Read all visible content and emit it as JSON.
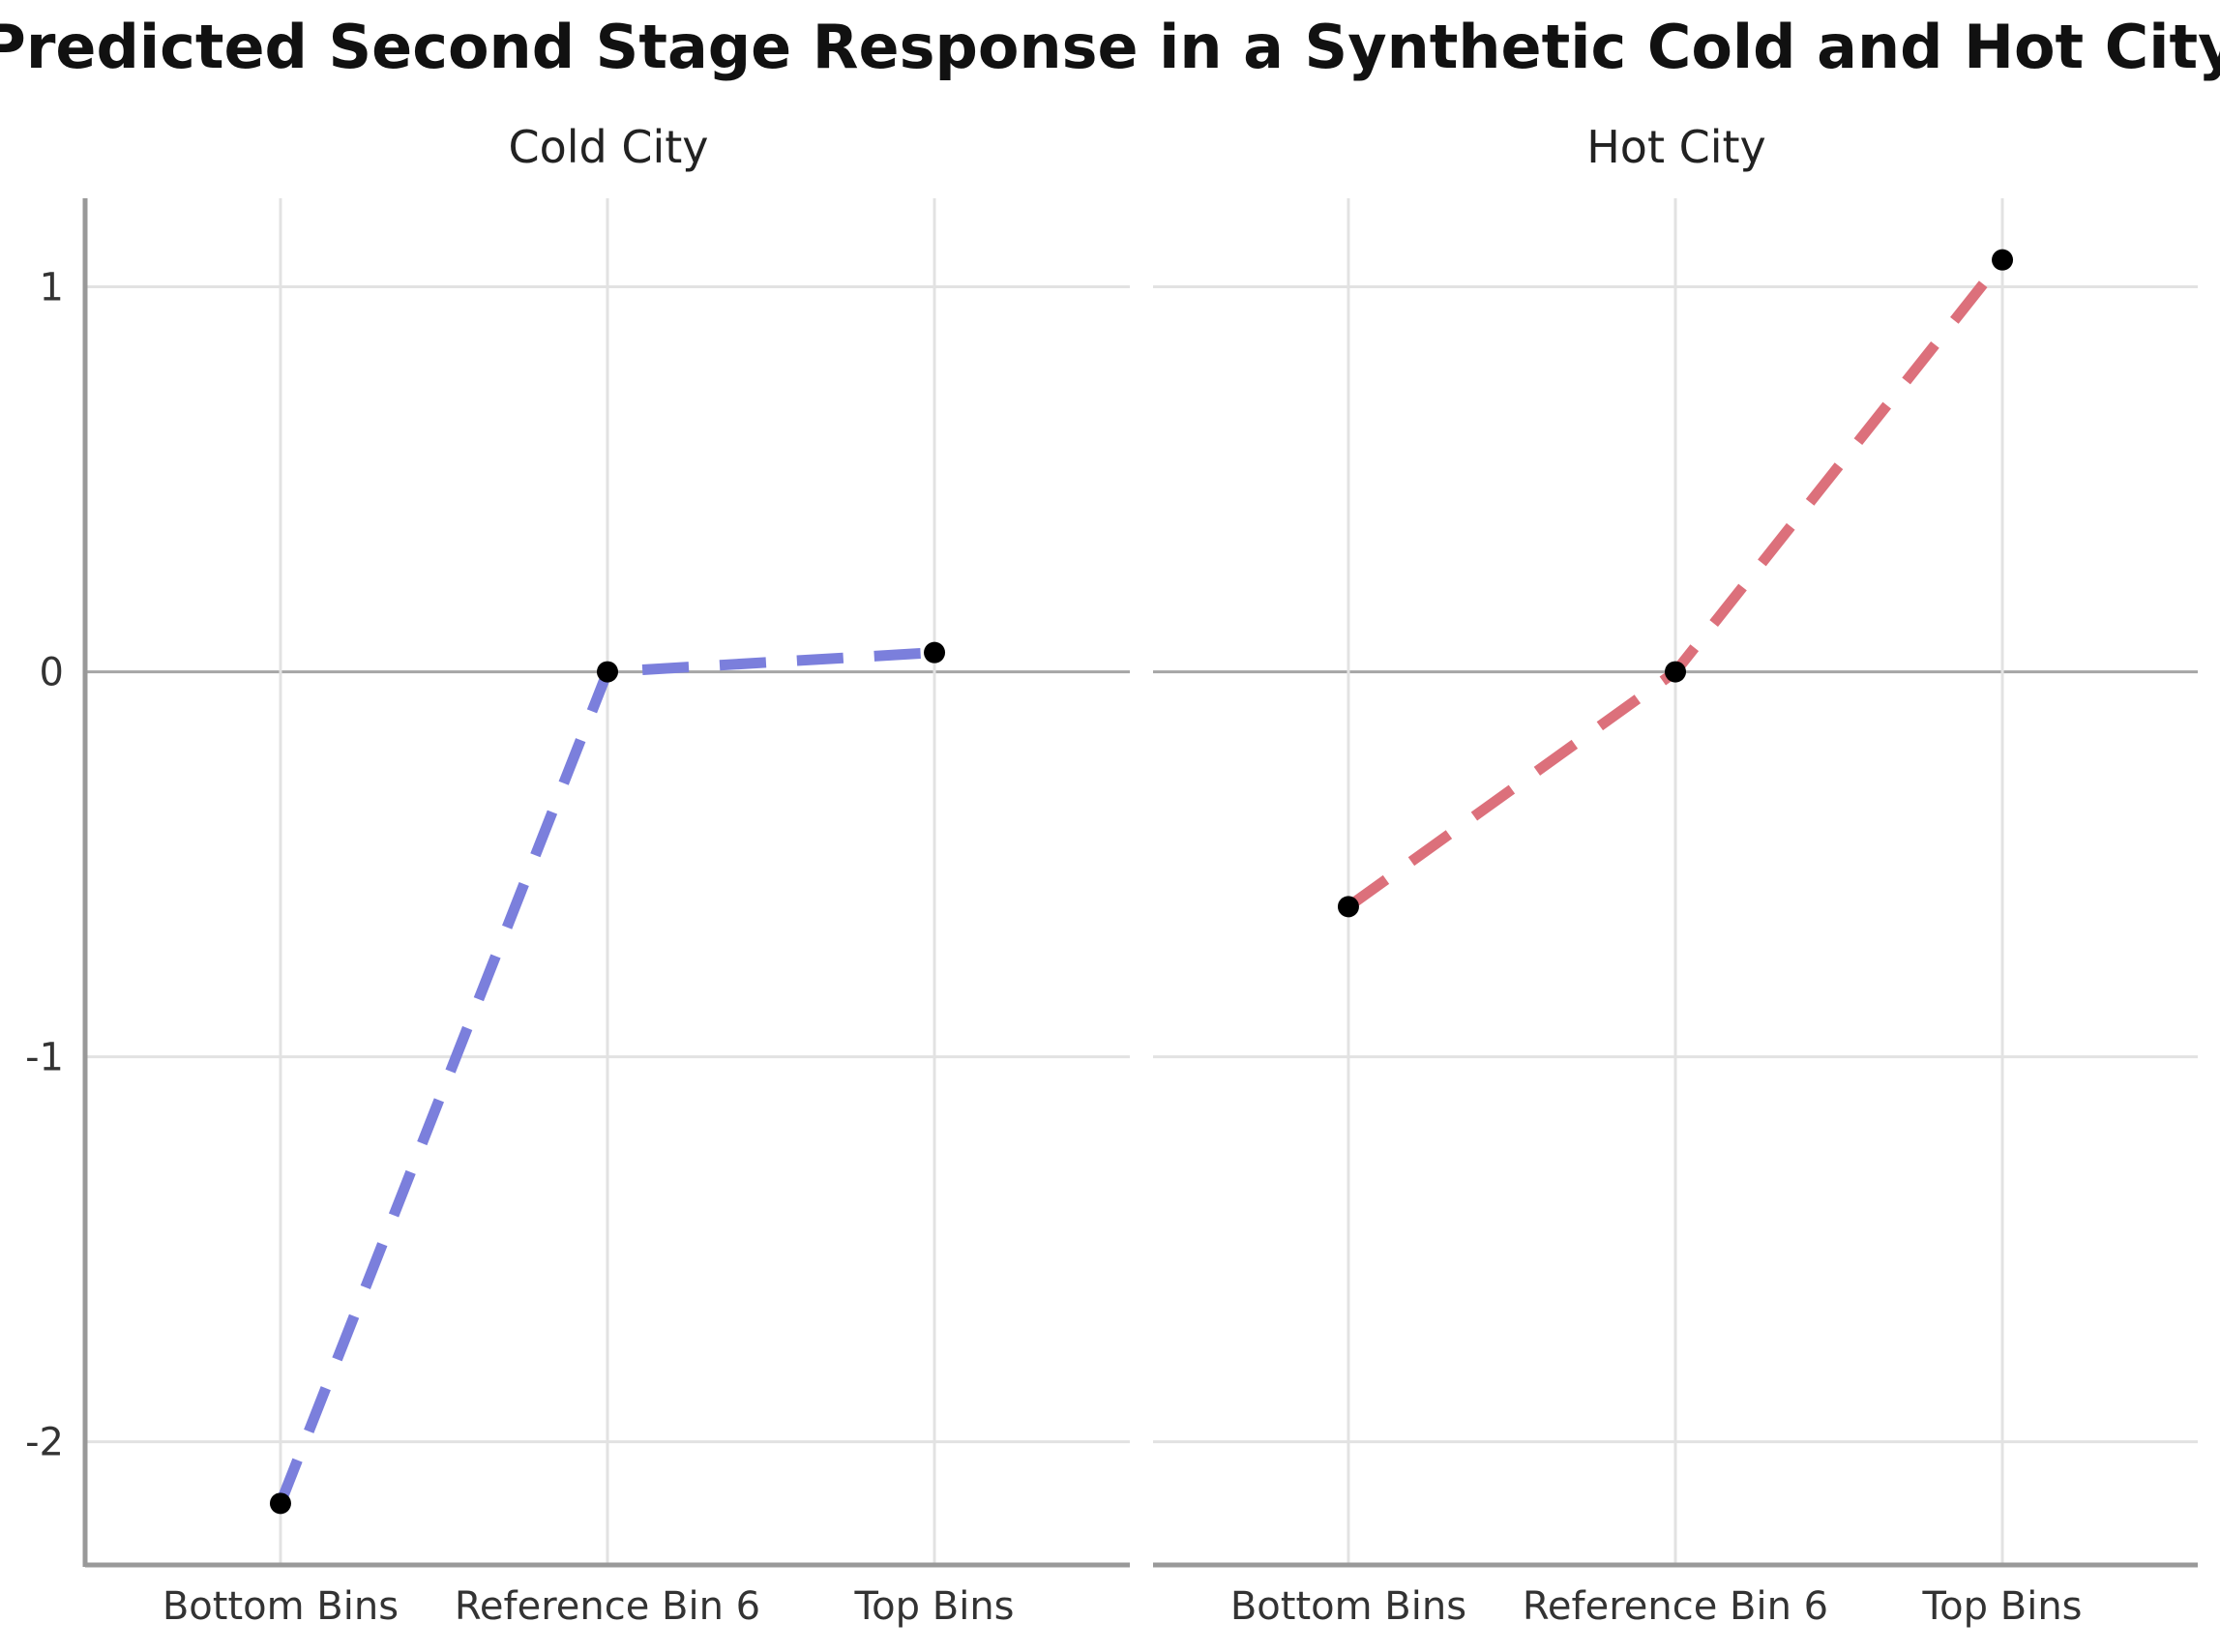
{
  "chart_data": {
    "type": "line",
    "title": "Predicted Second Stage Response in a Synthetic Cold and Hot City",
    "categories": [
      "Bottom Bins",
      "Reference Bin 6",
      "Top Bins"
    ],
    "y_ticks": [
      "1",
      "0",
      "-1",
      "-2"
    ],
    "ylim": [
      -2.32,
      1.23
    ],
    "grid": true,
    "line_style": "dashed",
    "point_color": "#000000",
    "panels": [
      {
        "name": "Cold City",
        "color": "#7b7fdc",
        "values": [
          -2.16,
          0.0,
          0.05
        ]
      },
      {
        "name": "Hot City",
        "color": "#dc707b",
        "values": [
          -0.61,
          0.0,
          1.07
        ]
      }
    ]
  }
}
